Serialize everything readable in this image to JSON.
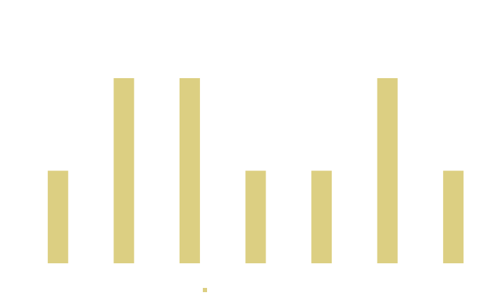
{
  "chart_data": {
    "type": "bar",
    "categories": [
      "",
      "",
      "",
      "",
      "",
      "",
      ""
    ],
    "series": [
      {
        "values": [
          1,
          2,
          2,
          1,
          1,
          2,
          1
        ],
        "color": "#dccf82"
      }
    ],
    "ylim": [
      0,
      2.5
    ],
    "grid": false,
    "legend": "bottom",
    "title": "",
    "xlabel": "",
    "ylabel": ""
  }
}
